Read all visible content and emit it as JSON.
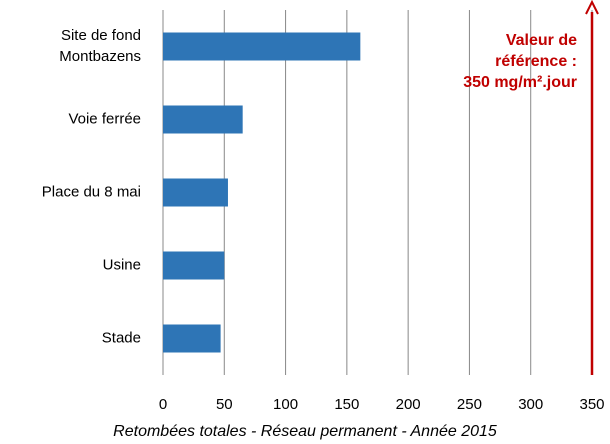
{
  "chart_data": {
    "type": "barh",
    "title": "Retombées totales - Réseau permanent - Année 2015",
    "categories": [
      "Site de fond\nMontbazens",
      "Voie ferrée",
      "Place du 8 mai",
      "Usine",
      "Stade"
    ],
    "values": [
      161,
      65,
      53,
      50,
      47
    ],
    "color": "#2e75b6",
    "xlim": [
      0,
      350
    ],
    "xticks": [
      0,
      50,
      100,
      150,
      200,
      250,
      300,
      350
    ],
    "grid": true,
    "reference_line": 350,
    "reference_color": "#c00000",
    "annotation": "Valeur de\nréférence :\n350 mg/m².jour"
  }
}
